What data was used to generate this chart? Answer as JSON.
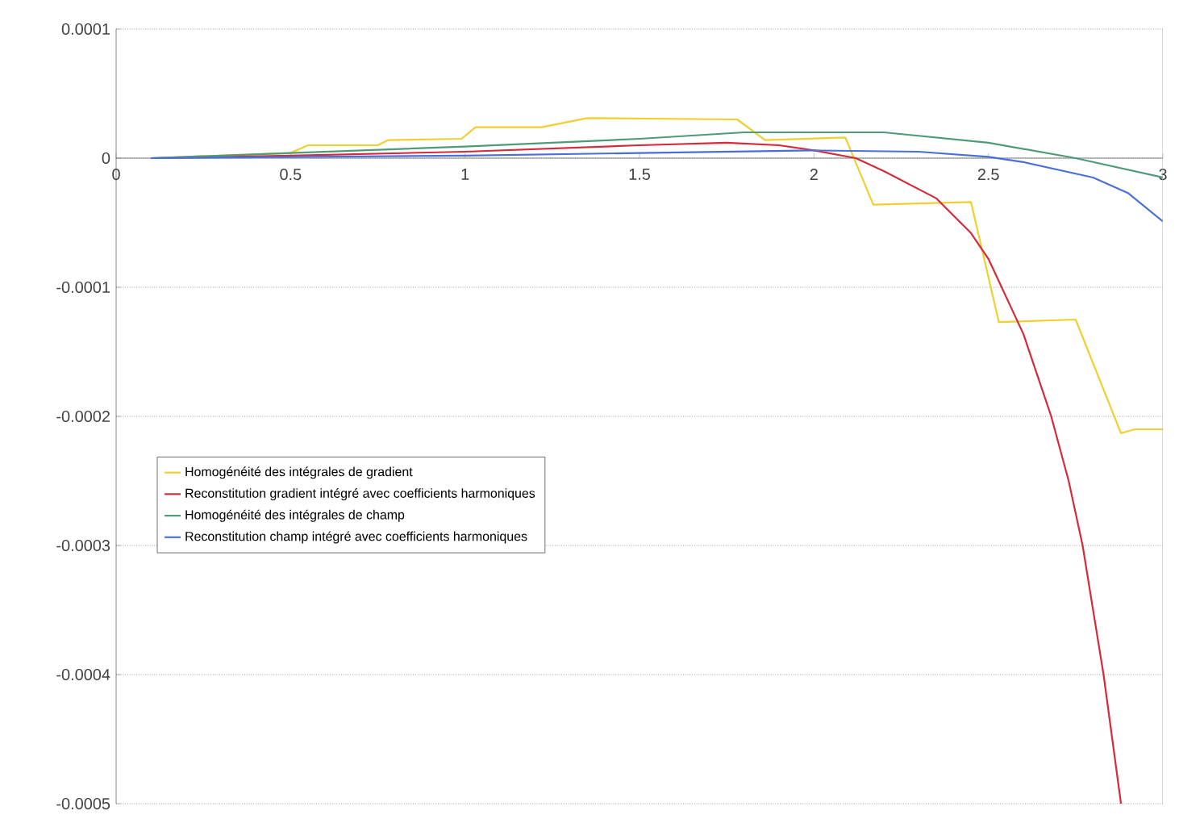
{
  "chart_data": {
    "type": "line",
    "xlim": [
      0,
      3
    ],
    "xticks": [
      0,
      0.5,
      1,
      1.5,
      2,
      2.5,
      3
    ],
    "ylim": [
      -0.0005,
      0.0001
    ],
    "yticks": [
      -0.0005,
      -0.0004,
      -0.0003,
      -0.0002,
      -0.0001,
      0,
      0.0001
    ],
    "grid": "y",
    "legend": "left",
    "marker": "none",
    "line_style": "solid",
    "series": [
      {
        "name": "Homogénéité des intégrales de gradient",
        "color": "#f0cf30",
        "x": [
          0.1,
          0.3,
          0.5,
          0.55,
          0.75,
          0.78,
          0.99,
          1.03,
          1.22,
          1.35,
          1.78,
          1.86,
          2.09,
          2.17,
          2.45,
          2.53,
          2.75,
          2.88,
          2.92,
          3.0
        ],
        "values": [
          0,
          2e-06,
          4e-06,
          1e-05,
          1e-05,
          1.4e-05,
          1.5e-05,
          2.4e-05,
          2.4e-05,
          3.1e-05,
          3e-05,
          1.4e-05,
          1.6e-05,
          -3.6e-05,
          -3.4e-05,
          -0.000127,
          -0.000125,
          -0.000213,
          -0.00021,
          -0.00021
        ]
      },
      {
        "name": "Reconstitution gradient intégré avec coefficients harmoniques",
        "color": "#d42a3a",
        "x": [
          0.1,
          0.5,
          1.0,
          1.5,
          1.75,
          1.9,
          2.0,
          2.12,
          2.2,
          2.35,
          2.45,
          2.5,
          2.6,
          2.68,
          2.73,
          2.77,
          2.83,
          2.88
        ],
        "values": [
          0,
          2e-06,
          5e-06,
          1e-05,
          1.2e-05,
          1e-05,
          6e-06,
          0,
          -1e-05,
          -3.1e-05,
          -5.8e-05,
          -7.8e-05,
          -0.000136,
          -0.0002,
          -0.00025,
          -0.0003,
          -0.0004,
          -0.0005
        ]
      },
      {
        "name": "Homogénéité des intégrales de champ",
        "color": "#4f9a78",
        "x": [
          0.1,
          0.5,
          1.0,
          1.5,
          1.8,
          2.2,
          2.5,
          2.75,
          3.0
        ],
        "values": [
          0,
          4e-06,
          9e-06,
          1.5e-05,
          2e-05,
          2e-05,
          1.2e-05,
          0,
          -1.5e-05
        ]
      },
      {
        "name": "Reconstitution champ intégré avec coefficients harmoniques",
        "color": "#4a6fd8",
        "x": [
          0.1,
          1.0,
          1.5,
          1.75,
          2.0,
          2.3,
          2.5,
          2.6,
          2.8,
          2.9,
          3.0
        ],
        "values": [
          0,
          2e-06,
          4e-06,
          5e-06,
          6e-06,
          5e-06,
          1e-06,
          -3e-06,
          -1.5e-05,
          -2.7e-05,
          -4.9e-05
        ]
      }
    ]
  }
}
